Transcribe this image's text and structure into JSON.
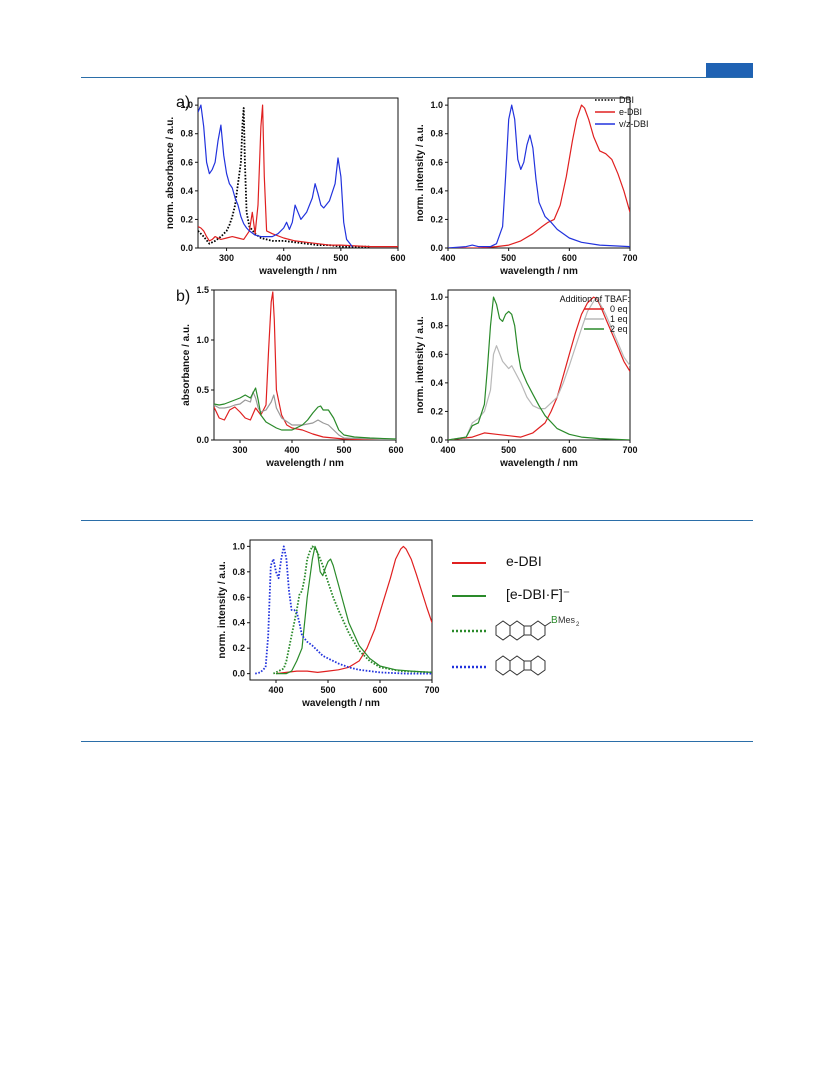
{
  "panel_a_label": "a)",
  "panel_b_label": "b)",
  "chart_data": [
    {
      "type": "line",
      "id": "a-abs",
      "xlabel": "wavelength / nm",
      "ylabel": "norm. absorbance / a.u.",
      "xlim": [
        250,
        600
      ],
      "ylim": [
        0,
        1.05
      ],
      "xticks": [
        300,
        400,
        500,
        600
      ],
      "yticks": [
        0.0,
        0.2,
        0.4,
        0.6,
        0.8,
        1.0
      ],
      "series": [
        {
          "name": "DBI",
          "color": "#000000",
          "style": "dotted",
          "x": [
            250,
            260,
            270,
            280,
            290,
            300,
            305,
            310,
            315,
            320,
            325,
            328,
            330,
            332,
            335,
            340,
            350,
            360,
            380,
            400,
            420,
            440,
            460,
            480,
            500,
            520,
            550
          ],
          "y": [
            0.12,
            0.08,
            0.03,
            0.05,
            0.08,
            0.12,
            0.16,
            0.22,
            0.3,
            0.45,
            0.6,
            0.88,
            0.98,
            0.6,
            0.25,
            0.15,
            0.1,
            0.07,
            0.05,
            0.05,
            0.04,
            0.03,
            0.02,
            0.02,
            0.01,
            0.01,
            0.01
          ]
        },
        {
          "name": "e-DBI",
          "color": "#e02020",
          "style": "solid",
          "x": [
            250,
            255,
            260,
            265,
            270,
            275,
            280,
            285,
            290,
            300,
            310,
            320,
            330,
            340,
            345,
            350,
            355,
            360,
            363,
            366,
            370,
            380,
            400,
            420,
            440,
            460,
            480,
            500,
            550,
            600
          ],
          "y": [
            0.15,
            0.14,
            0.12,
            0.08,
            0.05,
            0.06,
            0.08,
            0.07,
            0.06,
            0.07,
            0.08,
            0.07,
            0.06,
            0.12,
            0.25,
            0.1,
            0.3,
            0.85,
            1.0,
            0.5,
            0.12,
            0.1,
            0.07,
            0.05,
            0.04,
            0.03,
            0.02,
            0.02,
            0.01,
            0.01
          ]
        },
        {
          "name": "v/z-DBI",
          "color": "#2233dd",
          "style": "solid",
          "x": [
            250,
            255,
            260,
            265,
            270,
            275,
            280,
            285,
            290,
            295,
            300,
            305,
            310,
            315,
            320,
            325,
            330,
            335,
            340,
            350,
            360,
            370,
            380,
            390,
            400,
            405,
            410,
            415,
            420,
            425,
            430,
            440,
            450,
            455,
            460,
            465,
            470,
            480,
            490,
            495,
            500,
            505,
            510,
            520
          ],
          "y": [
            0.95,
            1.0,
            0.85,
            0.6,
            0.52,
            0.55,
            0.6,
            0.75,
            0.86,
            0.65,
            0.52,
            0.45,
            0.42,
            0.35,
            0.3,
            0.22,
            0.17,
            0.14,
            0.12,
            0.09,
            0.08,
            0.08,
            0.08,
            0.1,
            0.14,
            0.18,
            0.13,
            0.18,
            0.3,
            0.25,
            0.2,
            0.25,
            0.35,
            0.45,
            0.38,
            0.3,
            0.28,
            0.33,
            0.45,
            0.63,
            0.5,
            0.18,
            0.06,
            0.01
          ]
        }
      ]
    },
    {
      "type": "line",
      "id": "a-em",
      "xlabel": "wavelength / nm",
      "ylabel": "norm. intensity / a.u.",
      "xlim": [
        400,
        700
      ],
      "ylim": [
        0,
        1.05
      ],
      "xticks": [
        400,
        500,
        600,
        700
      ],
      "yticks": [
        0.0,
        0.2,
        0.4,
        0.6,
        0.8,
        1.0
      ],
      "legend": [
        "DBI",
        "e-DBI",
        "v/z-DBI"
      ],
      "series": [
        {
          "name": "e-DBI",
          "color": "#e02020",
          "style": "solid",
          "x": [
            400,
            450,
            480,
            500,
            520,
            540,
            555,
            565,
            575,
            585,
            595,
            605,
            612,
            620,
            625,
            632,
            640,
            650,
            660,
            670,
            680,
            690,
            700
          ],
          "y": [
            0.0,
            0.0,
            0.01,
            0.02,
            0.05,
            0.1,
            0.15,
            0.18,
            0.2,
            0.3,
            0.5,
            0.75,
            0.9,
            1.0,
            0.98,
            0.9,
            0.78,
            0.68,
            0.66,
            0.62,
            0.52,
            0.4,
            0.25
          ]
        },
        {
          "name": "v/z-DBI",
          "color": "#2233dd",
          "style": "solid",
          "x": [
            400,
            430,
            440,
            450,
            470,
            480,
            490,
            495,
            500,
            505,
            510,
            515,
            520,
            525,
            530,
            535,
            540,
            545,
            550,
            560,
            570,
            580,
            600,
            620,
            650,
            700
          ],
          "y": [
            0.0,
            0.01,
            0.02,
            0.01,
            0.01,
            0.03,
            0.15,
            0.5,
            0.9,
            1.0,
            0.9,
            0.62,
            0.55,
            0.6,
            0.72,
            0.79,
            0.7,
            0.48,
            0.32,
            0.22,
            0.18,
            0.13,
            0.07,
            0.04,
            0.02,
            0.01
          ]
        }
      ]
    },
    {
      "type": "line",
      "id": "b-abs",
      "xlabel": "wavelength  /  nm",
      "ylabel": "absorbance  /  a.u.",
      "xlim": [
        250,
        600
      ],
      "ylim": [
        0,
        1.5
      ],
      "xticks": [
        300,
        400,
        500,
        600
      ],
      "yticks": [
        0.0,
        0.5,
        1.0,
        1.5
      ],
      "series": [
        {
          "name": "0 eq",
          "color": "#e02020",
          "style": "solid",
          "x": [
            250,
            260,
            270,
            280,
            290,
            300,
            310,
            320,
            330,
            340,
            345,
            350,
            355,
            360,
            363,
            366,
            370,
            380,
            390,
            400,
            420,
            440,
            460,
            480,
            500,
            550,
            600
          ],
          "y": [
            0.33,
            0.22,
            0.2,
            0.3,
            0.33,
            0.28,
            0.22,
            0.2,
            0.32,
            0.25,
            0.3,
            0.35,
            0.9,
            1.38,
            1.48,
            1.2,
            0.5,
            0.25,
            0.15,
            0.12,
            0.1,
            0.06,
            0.03,
            0.02,
            0.01,
            0.0,
            0.0
          ]
        },
        {
          "name": "1 eq",
          "color": "#999999",
          "style": "solid",
          "x": [
            250,
            260,
            270,
            280,
            290,
            300,
            310,
            320,
            325,
            330,
            335,
            340,
            350,
            360,
            365,
            370,
            380,
            400,
            420,
            440,
            450,
            460,
            470,
            480,
            490,
            500,
            550,
            600
          ],
          "y": [
            0.35,
            0.32,
            0.32,
            0.33,
            0.35,
            0.36,
            0.4,
            0.38,
            0.48,
            0.42,
            0.32,
            0.28,
            0.3,
            0.38,
            0.45,
            0.32,
            0.22,
            0.15,
            0.15,
            0.17,
            0.2,
            0.17,
            0.15,
            0.1,
            0.05,
            0.02,
            0.01,
            0.0
          ]
        },
        {
          "name": "2 eq",
          "color": "#2a8a2a",
          "style": "solid",
          "x": [
            250,
            260,
            270,
            280,
            290,
            300,
            310,
            320,
            330,
            335,
            340,
            350,
            360,
            370,
            380,
            400,
            420,
            430,
            440,
            450,
            455,
            460,
            470,
            480,
            490,
            500,
            520,
            550,
            600
          ],
          "y": [
            0.36,
            0.35,
            0.36,
            0.38,
            0.4,
            0.42,
            0.45,
            0.42,
            0.52,
            0.4,
            0.25,
            0.18,
            0.15,
            0.12,
            0.1,
            0.1,
            0.15,
            0.2,
            0.27,
            0.33,
            0.34,
            0.3,
            0.3,
            0.22,
            0.1,
            0.05,
            0.03,
            0.02,
            0.01
          ]
        }
      ]
    },
    {
      "type": "line",
      "id": "b-em",
      "xlabel": "wavelength / nm",
      "ylabel": "norm. intensity / a.u.",
      "xlim": [
        400,
        700
      ],
      "ylim": [
        0,
        1.05
      ],
      "xticks": [
        400,
        500,
        600,
        700
      ],
      "yticks": [
        0.0,
        0.2,
        0.4,
        0.6,
        0.8,
        1.0
      ],
      "legend_title": "Addition of TBAF:",
      "legend": [
        "0 eq",
        "1 eq",
        "2 eq"
      ],
      "series": [
        {
          "name": "0 eq",
          "color": "#e02020",
          "style": "solid",
          "x": [
            400,
            440,
            460,
            480,
            500,
            520,
            540,
            560,
            570,
            580,
            590,
            600,
            610,
            620,
            630,
            640,
            645,
            650,
            660,
            670,
            680,
            690,
            700
          ],
          "y": [
            0.0,
            0.02,
            0.05,
            0.04,
            0.03,
            0.02,
            0.05,
            0.12,
            0.2,
            0.3,
            0.45,
            0.6,
            0.75,
            0.88,
            0.96,
            1.0,
            0.99,
            0.95,
            0.85,
            0.75,
            0.65,
            0.55,
            0.48
          ]
        },
        {
          "name": "1 eq",
          "color": "#b8b8b8",
          "style": "solid",
          "x": [
            400,
            430,
            440,
            450,
            460,
            470,
            475,
            480,
            490,
            500,
            505,
            510,
            520,
            530,
            540,
            550,
            560,
            570,
            580,
            590,
            600,
            610,
            620,
            630,
            640,
            645,
            650,
            660,
            670,
            680,
            690,
            700
          ],
          "y": [
            0.0,
            0.02,
            0.12,
            0.15,
            0.2,
            0.35,
            0.6,
            0.66,
            0.55,
            0.5,
            0.52,
            0.48,
            0.4,
            0.3,
            0.24,
            0.22,
            0.22,
            0.26,
            0.3,
            0.4,
            0.52,
            0.65,
            0.78,
            0.9,
            0.97,
            1.0,
            0.96,
            0.88,
            0.78,
            0.68,
            0.58,
            0.52
          ]
        },
        {
          "name": "2 eq",
          "color": "#2a8a2a",
          "style": "solid",
          "x": [
            400,
            430,
            440,
            450,
            460,
            465,
            470,
            475,
            480,
            485,
            490,
            495,
            500,
            505,
            510,
            515,
            520,
            530,
            540,
            550,
            560,
            580,
            600,
            620,
            650,
            700
          ],
          "y": [
            0.0,
            0.02,
            0.1,
            0.12,
            0.25,
            0.5,
            0.8,
            1.0,
            0.95,
            0.85,
            0.83,
            0.88,
            0.9,
            0.88,
            0.8,
            0.62,
            0.5,
            0.4,
            0.32,
            0.24,
            0.17,
            0.08,
            0.04,
            0.02,
            0.01,
            0.0
          ]
        }
      ]
    },
    {
      "type": "line",
      "id": "c-em",
      "xlabel": "wavelength / nm",
      "ylabel": "norm. intensity / a.u.",
      "xlim": [
        350,
        700
      ],
      "ylim": [
        -0.05,
        1.05
      ],
      "xticks": [
        400,
        500,
        600,
        700
      ],
      "yticks": [
        0.0,
        0.2,
        0.4,
        0.6,
        0.8,
        1.0
      ],
      "legend": [
        "e-DBI",
        "[e-DBI·F]⁻"
      ],
      "series": [
        {
          "name": "e-DBI",
          "color": "#e02020",
          "style": "solid",
          "x": [
            400,
            420,
            440,
            460,
            480,
            500,
            520,
            540,
            560,
            575,
            590,
            605,
            620,
            630,
            640,
            645,
            650,
            660,
            670,
            680,
            690,
            700
          ],
          "y": [
            0.0,
            0.01,
            0.02,
            0.02,
            0.01,
            0.02,
            0.03,
            0.05,
            0.1,
            0.2,
            0.35,
            0.55,
            0.75,
            0.9,
            0.98,
            1.0,
            0.98,
            0.9,
            0.78,
            0.65,
            0.52,
            0.4
          ]
        },
        {
          "name": "[e-DBI·F]⁻",
          "color": "#2a8a2a",
          "style": "solid",
          "x": [
            400,
            420,
            430,
            440,
            450,
            455,
            460,
            465,
            470,
            475,
            480,
            485,
            490,
            495,
            500,
            505,
            510,
            520,
            530,
            540,
            560,
            580,
            600,
            630,
            660,
            700
          ],
          "y": [
            0.0,
            0.0,
            0.02,
            0.1,
            0.2,
            0.4,
            0.6,
            0.75,
            0.9,
            1.0,
            0.95,
            0.8,
            0.77,
            0.83,
            0.88,
            0.9,
            0.85,
            0.7,
            0.55,
            0.4,
            0.22,
            0.12,
            0.06,
            0.03,
            0.02,
            0.01
          ]
        },
        {
          "color": "#2a8a2a",
          "style": "dotted",
          "x": [
            395,
            405,
            415,
            420,
            425,
            430,
            440,
            445,
            450,
            455,
            460,
            465,
            470,
            475,
            480,
            490,
            500,
            510,
            520,
            540,
            560,
            580,
            600,
            640,
            700
          ],
          "y": [
            0.0,
            0.02,
            0.04,
            0.1,
            0.2,
            0.3,
            0.5,
            0.62,
            0.65,
            0.75,
            0.9,
            0.96,
            1.0,
            0.98,
            0.95,
            0.85,
            0.72,
            0.6,
            0.5,
            0.32,
            0.18,
            0.1,
            0.05,
            0.02,
            0.01
          ]
        },
        {
          "color": "#2233dd",
          "style": "dotted",
          "x": [
            360,
            370,
            380,
            385,
            390,
            395,
            400,
            405,
            410,
            415,
            420,
            425,
            430,
            435,
            440,
            445,
            450,
            460,
            470,
            480,
            490,
            500,
            520,
            540,
            560,
            600,
            650,
            700
          ],
          "y": [
            0.0,
            0.01,
            0.05,
            0.3,
            0.85,
            0.9,
            0.8,
            0.75,
            0.9,
            1.0,
            0.9,
            0.65,
            0.5,
            0.5,
            0.48,
            0.4,
            0.3,
            0.25,
            0.22,
            0.18,
            0.14,
            0.12,
            0.08,
            0.05,
            0.03,
            0.01,
            0.0,
            0.0
          ]
        }
      ]
    }
  ],
  "structure_label": "BMes",
  "structure_sub": "2"
}
